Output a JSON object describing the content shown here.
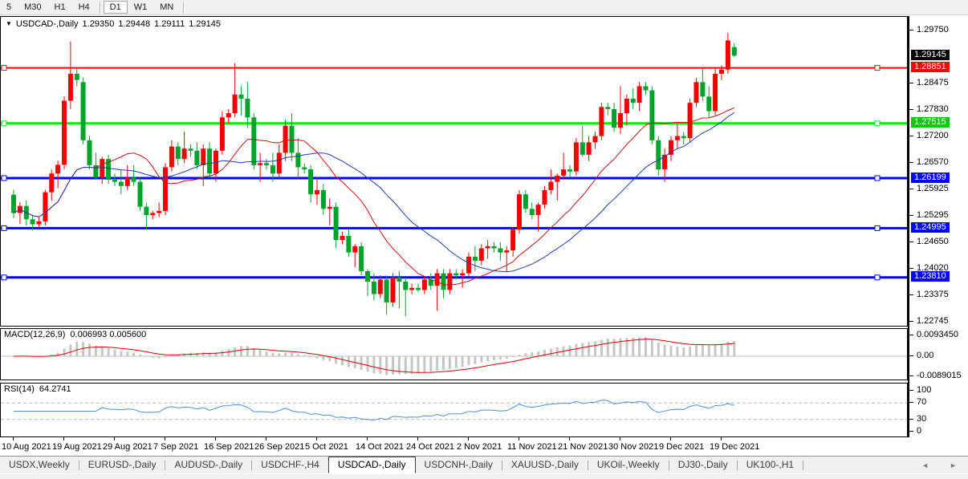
{
  "toolbar": {
    "timeframes": [
      {
        "label": "5",
        "active": false
      },
      {
        "label": "M30",
        "active": false
      },
      {
        "label": "H1",
        "active": false
      },
      {
        "label": "H4",
        "active": false
      },
      {
        "label": "D1",
        "active": true
      },
      {
        "label": "W1",
        "active": false
      },
      {
        "label": "MN",
        "active": false
      }
    ]
  },
  "chart": {
    "title": {
      "symbol": "USDCAD-,Daily",
      "open": "1.29350",
      "high": "1.29448",
      "low": "1.29111",
      "close": "1.29145"
    },
    "dropdown_icon": "▼"
  },
  "price_axis": {
    "ticks": [
      "1.29750",
      "1.28475",
      "1.27830",
      "1.27200",
      "1.26570",
      "1.25925",
      "1.25295",
      "1.24650",
      "1.24020",
      "1.23375",
      "1.22745"
    ],
    "badges": [
      {
        "text": "1.29145",
        "bg": "#000000",
        "fg": "#ffffff",
        "role": "current-price"
      },
      {
        "text": "1.28851",
        "bg": "#ff0000",
        "fg": "#ffffff",
        "role": "resistance-line"
      },
      {
        "text": "1.27515",
        "bg": "#00cc00",
        "fg": "#ffffff",
        "role": "support-line"
      },
      {
        "text": "1.26199",
        "bg": "#0000ff",
        "fg": "#ffffff",
        "role": "support-line"
      },
      {
        "text": "1.24995",
        "bg": "#0000ff",
        "fg": "#ffffff",
        "role": "support-line"
      },
      {
        "text": "1.23810",
        "bg": "#0000ff",
        "fg": "#ffffff",
        "role": "support-line"
      }
    ]
  },
  "indicators": {
    "macd": {
      "label": "MACD(12,26,9)",
      "values": "0.006993 0.005600",
      "axis": [
        "0.0093450",
        "0.00",
        "-0.0089015"
      ]
    },
    "rsi": {
      "label": "RSI(14)",
      "value": "64.2741",
      "axis": [
        "100",
        "70",
        "30",
        "0"
      ]
    }
  },
  "date_axis": {
    "labels": [
      "10 Aug 2021",
      "19 Aug 2021",
      "29 Aug 2021",
      "7 Sep 2021",
      "16 Sep 2021",
      "26 Sep 2021",
      "5 Oct 2021",
      "14 Oct 2021",
      "24 Oct 2021",
      "2 Nov 2021",
      "11 Nov 2021",
      "21 Nov 2021",
      "30 Nov 2021",
      "9 Dec 2021",
      "19 Dec 2021"
    ],
    "bars_per_label": 8
  },
  "tabs": {
    "items": [
      "USDX,Weekly",
      "EURUSD-,Daily",
      "AUDUSD-,Daily",
      "USDCHF-,H4",
      "USDCAD-,Daily",
      "USDCNH-,Daily",
      "XAUUSD-,Daily",
      "UKOil-,Weekly",
      "DJ30-,Daily",
      "UK100-,H1"
    ],
    "active_index": 4,
    "scroll_left": "◄",
    "scroll_right": "►"
  },
  "chart_data": {
    "type": "candlestick",
    "title": "USDCAD-,Daily",
    "ylim": [
      1.2261,
      1.3008
    ],
    "grid": false,
    "bull_color": "#f40000",
    "bear_color": "#00a42a",
    "horizontal_lines": [
      {
        "price": 1.28851,
        "color": "#ff0000",
        "width": 2
      },
      {
        "price": 1.27515,
        "color": "#00ee00",
        "width": 3
      },
      {
        "price": 1.26199,
        "color": "#0000ff",
        "width": 3
      },
      {
        "price": 1.24995,
        "color": "#0000ff",
        "width": 3
      },
      {
        "price": 1.2381,
        "color": "#0000ff",
        "width": 3
      }
    ],
    "moving_averages": [
      {
        "period": 14,
        "color": "#cc1111"
      },
      {
        "period": 26,
        "color": "#1f3bb3"
      }
    ],
    "x_labels": [
      "10 Aug 2021",
      "19 Aug 2021",
      "29 Aug 2021",
      "7 Sep 2021",
      "16 Sep 2021",
      "26 Sep 2021",
      "5 Oct 2021",
      "14 Oct 2021",
      "24 Oct 2021",
      "2 Nov 2021",
      "11 Nov 2021",
      "21 Nov 2021",
      "30 Nov 2021",
      "9 Dec 2021",
      "19 Dec 2021"
    ],
    "candles": [
      [
        1.258,
        1.2592,
        1.2524,
        1.2536
      ],
      [
        1.2536,
        1.2562,
        1.251,
        1.2553
      ],
      [
        1.2553,
        1.2566,
        1.2506,
        1.2521
      ],
      [
        1.2521,
        1.2532,
        1.2494,
        1.2509
      ],
      [
        1.2509,
        1.2526,
        1.25,
        1.2516
      ],
      [
        1.2516,
        1.2592,
        1.2506,
        1.2586
      ],
      [
        1.2586,
        1.2641,
        1.2566,
        1.2631
      ],
      [
        1.2631,
        1.2662,
        1.2596,
        1.2652
      ],
      [
        1.2652,
        1.2817,
        1.2641,
        1.2806
      ],
      [
        1.2806,
        1.2949,
        1.2786,
        1.2871
      ],
      [
        1.2871,
        1.2886,
        1.2841,
        1.2856
      ],
      [
        1.2851,
        1.2862,
        1.2701,
        1.2711
      ],
      [
        1.2711,
        1.2722,
        1.2641,
        1.2651
      ],
      [
        1.2651,
        1.2681,
        1.2616,
        1.2621
      ],
      [
        1.2621,
        1.2671,
        1.2606,
        1.2666
      ],
      [
        1.2666,
        1.2676,
        1.2606,
        1.2616
      ],
      [
        1.2616,
        1.2631,
        1.2601,
        1.2611
      ],
      [
        1.2611,
        1.2641,
        1.2581,
        1.2601
      ],
      [
        1.2601,
        1.2651,
        1.2591,
        1.2621
      ],
      [
        1.2621,
        1.2651,
        1.2601,
        1.2611
      ],
      [
        1.2611,
        1.2621,
        1.2541,
        1.2551
      ],
      [
        1.2551,
        1.2561,
        1.2496,
        1.2531
      ],
      [
        1.2531,
        1.2541,
        1.2521,
        1.2536
      ],
      [
        1.2536,
        1.2561,
        1.2526,
        1.2541
      ],
      [
        1.2541,
        1.2656,
        1.2531,
        1.2646
      ],
      [
        1.2646,
        1.2711,
        1.2636,
        1.2696
      ],
      [
        1.2696,
        1.2706,
        1.2651,
        1.2666
      ],
      [
        1.2666,
        1.2731,
        1.2656,
        1.2691
      ],
      [
        1.2691,
        1.2701,
        1.2671,
        1.2686
      ],
      [
        1.2686,
        1.2706,
        1.2641,
        1.2651
      ],
      [
        1.2651,
        1.2701,
        1.2601,
        1.2691
      ],
      [
        1.2691,
        1.2706,
        1.2621,
        1.2631
      ],
      [
        1.2631,
        1.2691,
        1.2611,
        1.2686
      ],
      [
        1.2686,
        1.2781,
        1.2676,
        1.2766
      ],
      [
        1.2766,
        1.2786,
        1.2751,
        1.2776
      ],
      [
        1.2776,
        1.2896,
        1.2766,
        1.2821
      ],
      [
        1.2821,
        1.2841,
        1.2771,
        1.2811
      ],
      [
        1.2811,
        1.2851,
        1.2741,
        1.2766
      ],
      [
        1.2766,
        1.2776,
        1.2641,
        1.2651
      ],
      [
        1.2651,
        1.2681,
        1.2611,
        1.2656
      ],
      [
        1.2656,
        1.2666,
        1.2641,
        1.2651
      ],
      [
        1.2651,
        1.2681,
        1.2611,
        1.2631
      ],
      [
        1.2631,
        1.2701,
        1.2621,
        1.2681
      ],
      [
        1.2681,
        1.2761,
        1.2661,
        1.2746
      ],
      [
        1.2746,
        1.2776,
        1.2661,
        1.2681
      ],
      [
        1.2681,
        1.2716,
        1.2621,
        1.2646
      ],
      [
        1.2646,
        1.2656,
        1.2631,
        1.2641
      ],
      [
        1.2641,
        1.2651,
        1.2561,
        1.2581
      ],
      [
        1.2581,
        1.2621,
        1.2556,
        1.2591
      ],
      [
        1.2591,
        1.2606,
        1.2531,
        1.2546
      ],
      [
        1.2546,
        1.2571,
        1.2506,
        1.2551
      ],
      [
        1.2551,
        1.2561,
        1.2451,
        1.2471
      ],
      [
        1.2471,
        1.2491,
        1.2461,
        1.2481
      ],
      [
        1.2481,
        1.2496,
        1.2431,
        1.2441
      ],
      [
        1.2441,
        1.2461,
        1.2406,
        1.2456
      ],
      [
        1.2456,
        1.2466,
        1.2386,
        1.2396
      ],
      [
        1.2396,
        1.2401,
        1.2336,
        1.2371
      ],
      [
        1.2371,
        1.2391,
        1.2326,
        1.2341
      ],
      [
        1.2341,
        1.2386,
        1.2331,
        1.2376
      ],
      [
        1.2376,
        1.2386,
        1.2291,
        1.2321
      ],
      [
        1.2321,
        1.2391,
        1.2311,
        1.2381
      ],
      [
        1.2381,
        1.2396,
        1.2306,
        1.2371
      ],
      [
        1.2371,
        1.2381,
        1.2288,
        1.2351
      ],
      [
        1.2351,
        1.2366,
        1.2341,
        1.2356
      ],
      [
        1.2356,
        1.2366,
        1.2346,
        1.2351
      ],
      [
        1.2351,
        1.2381,
        1.2341,
        1.2376
      ],
      [
        1.2376,
        1.2391,
        1.2351,
        1.2361
      ],
      [
        1.2361,
        1.2401,
        1.2301,
        1.2391
      ],
      [
        1.2391,
        1.2401,
        1.2331,
        1.2351
      ],
      [
        1.2351,
        1.2401,
        1.2341,
        1.2391
      ],
      [
        1.2391,
        1.2401,
        1.2376,
        1.2386
      ],
      [
        1.2386,
        1.2401,
        1.2356,
        1.2391
      ],
      [
        1.2391,
        1.2441,
        1.2381,
        1.2431
      ],
      [
        1.2431,
        1.2456,
        1.2396,
        1.2421
      ],
      [
        1.2421,
        1.2461,
        1.2411,
        1.2451
      ],
      [
        1.2451,
        1.2471,
        1.2426,
        1.2456
      ],
      [
        1.2456,
        1.2466,
        1.2441,
        1.2451
      ],
      [
        1.2451,
        1.2466,
        1.2421,
        1.2441
      ],
      [
        1.2441,
        1.2456,
        1.2396,
        1.2446
      ],
      [
        1.2446,
        1.2501,
        1.2431,
        1.2496
      ],
      [
        1.2496,
        1.2591,
        1.2486,
        1.2581
      ],
      [
        1.2581,
        1.2591,
        1.2536,
        1.2546
      ],
      [
        1.2546,
        1.2561,
        1.2521,
        1.2531
      ],
      [
        1.2531,
        1.2561,
        1.2491,
        1.2556
      ],
      [
        1.2556,
        1.2601,
        1.2546,
        1.2591
      ],
      [
        1.2591,
        1.2641,
        1.2581,
        1.2611
      ],
      [
        1.2611,
        1.2631,
        1.2566,
        1.2626
      ],
      [
        1.2626,
        1.2681,
        1.2616,
        1.2641
      ],
      [
        1.2641,
        1.2651,
        1.2621,
        1.2636
      ],
      [
        1.2636,
        1.2716,
        1.2626,
        1.2706
      ],
      [
        1.2706,
        1.2746,
        1.2671,
        1.2676
      ],
      [
        1.2676,
        1.2721,
        1.2661,
        1.2706
      ],
      [
        1.2706,
        1.2731,
        1.2691,
        1.2721
      ],
      [
        1.2721,
        1.2801,
        1.2711,
        1.2791
      ],
      [
        1.2791,
        1.2801,
        1.2771,
        1.2786
      ],
      [
        1.2786,
        1.2801,
        1.2731,
        1.2741
      ],
      [
        1.2741,
        1.2841,
        1.2726,
        1.2776
      ],
      [
        1.2776,
        1.2821,
        1.2746,
        1.2811
      ],
      [
        1.2811,
        1.2836,
        1.2786,
        1.2801
      ],
      [
        1.2801,
        1.2851,
        1.2781,
        1.2841
      ],
      [
        1.2841,
        1.2851,
        1.2821,
        1.2831
      ],
      [
        1.2831,
        1.2841,
        1.2701,
        1.2711
      ],
      [
        1.2711,
        1.2721,
        1.2626,
        1.2641
      ],
      [
        1.2641,
        1.2691,
        1.2611,
        1.2676
      ],
      [
        1.2676,
        1.2721,
        1.2661,
        1.2711
      ],
      [
        1.2711,
        1.2751,
        1.2691,
        1.2721
      ],
      [
        1.2721,
        1.2731,
        1.2701,
        1.2716
      ],
      [
        1.2716,
        1.2811,
        1.2706,
        1.2801
      ],
      [
        1.2801,
        1.2861,
        1.2791,
        1.2851
      ],
      [
        1.2851,
        1.28851,
        1.2806,
        1.2816
      ],
      [
        1.2816,
        1.2841,
        1.2766,
        1.2781
      ],
      [
        1.2781,
        1.2886,
        1.2771,
        1.2871
      ],
      [
        1.2871,
        1.2891,
        1.2856,
        1.2881
      ],
      [
        1.2881,
        1.2969,
        1.2871,
        1.2951
      ],
      [
        1.2935,
        1.29448,
        1.29111,
        1.29145
      ]
    ],
    "macd": {
      "fast": 12,
      "slow": 26,
      "signal": 9,
      "histogram_color": "#c6c6c6",
      "signal_color": "#dd0000",
      "axis_max": 0.009345,
      "axis_min": -0.0089015,
      "current_main": 0.006993,
      "current_signal": 0.0056
    },
    "rsi": {
      "period": 14,
      "color": "#4a90d9",
      "levels": [
        70,
        30
      ],
      "level_color": "#b8b8b8",
      "current": 64.2741
    }
  }
}
